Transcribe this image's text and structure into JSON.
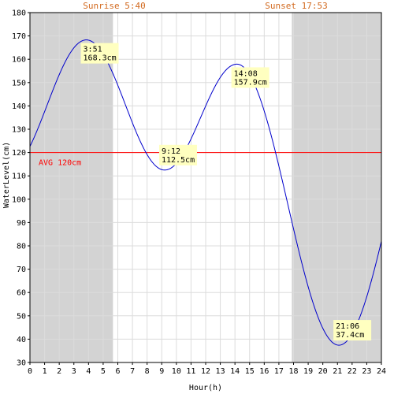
{
  "colors": {
    "night_shade": "#d3d3d3",
    "grid": "#dcdcdc",
    "curve": "#0000cc",
    "avg_line": "#ff0000",
    "sun_text": "#d2691e",
    "note_bg": "#ffffc0"
  },
  "chart_data": {
    "type": "line",
    "xlabel": "Hour(h)",
    "ylabel": "WaterLevel(cm)",
    "xlim": [
      0,
      24
    ],
    "ylim": [
      30,
      180
    ],
    "x_ticks": [
      0,
      1,
      2,
      3,
      4,
      5,
      6,
      7,
      8,
      9,
      10,
      11,
      12,
      13,
      14,
      15,
      16,
      17,
      18,
      19,
      20,
      21,
      22,
      23,
      24
    ],
    "y_ticks": [
      30,
      40,
      50,
      60,
      70,
      80,
      90,
      100,
      110,
      120,
      130,
      140,
      150,
      160,
      170,
      180
    ],
    "grid": true,
    "sunrise": {
      "label": "Sunrise 5:40",
      "hour": 5.667
    },
    "sunset": {
      "label": "Sunset 17:53",
      "hour": 17.883
    },
    "average": {
      "label": "AVG 120cm",
      "value": 120
    },
    "extrema": [
      {
        "time": "3:51",
        "hour": 3.85,
        "level": 168.3,
        "level_label": "168.3cm"
      },
      {
        "time": "9:12",
        "hour": 9.2,
        "level": 112.5,
        "level_label": "112.5cm"
      },
      {
        "time": "14:08",
        "hour": 14.133,
        "level": 157.9,
        "level_label": "157.9cm"
      },
      {
        "time": "21:06",
        "hour": 21.1,
        "level": 37.4,
        "level_label": "37.4cm"
      }
    ],
    "series": [
      {
        "x": [
          0,
          24
        ],
        "start_level": 114,
        "end_level": 95.5
      }
    ]
  }
}
